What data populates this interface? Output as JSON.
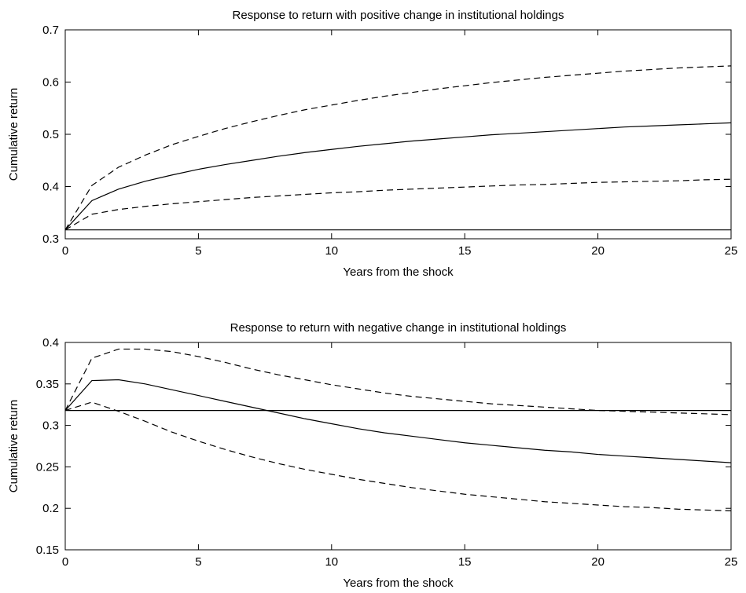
{
  "chart_data": [
    {
      "type": "line",
      "title": "Response to return with positive change in institutional holdings",
      "xlabel": "Years from the shock",
      "ylabel": "Cumulative return",
      "xlim": [
        0,
        25
      ],
      "ylim": [
        0.3,
        0.7
      ],
      "xticks": [
        0,
        5,
        10,
        15,
        20,
        25
      ],
      "xtick_labels": [
        "0",
        "5",
        "10",
        "15",
        "20",
        "25"
      ],
      "yticks": [
        0.3,
        0.4,
        0.5,
        0.6,
        0.7
      ],
      "ytick_labels": [
        "0.3",
        "0.4",
        "0.5",
        "0.6",
        "0.7"
      ],
      "grid": false,
      "x": [
        0,
        1,
        2,
        3,
        4,
        5,
        6,
        7,
        8,
        9,
        10,
        11,
        12,
        13,
        14,
        15,
        16,
        17,
        18,
        19,
        20,
        21,
        22,
        23,
        24,
        25
      ],
      "reference_y": 0.317,
      "series": [
        {
          "style": "solid",
          "values": [
            0.317,
            0.373,
            0.395,
            0.41,
            0.422,
            0.433,
            0.442,
            0.45,
            0.458,
            0.465,
            0.471,
            0.477,
            0.482,
            0.487,
            0.491,
            0.495,
            0.499,
            0.502,
            0.505,
            0.508,
            0.511,
            0.514,
            0.516,
            0.518,
            0.52,
            0.522
          ]
        },
        {
          "style": "dashed",
          "values": [
            0.317,
            0.402,
            0.437,
            0.46,
            0.48,
            0.496,
            0.511,
            0.524,
            0.536,
            0.547,
            0.556,
            0.565,
            0.573,
            0.58,
            0.587,
            0.593,
            0.599,
            0.604,
            0.609,
            0.613,
            0.617,
            0.621,
            0.624,
            0.627,
            0.629,
            0.631
          ]
        },
        {
          "style": "dashed",
          "values": [
            0.317,
            0.347,
            0.356,
            0.362,
            0.367,
            0.371,
            0.375,
            0.379,
            0.382,
            0.385,
            0.388,
            0.39,
            0.393,
            0.395,
            0.397,
            0.399,
            0.401,
            0.403,
            0.404,
            0.406,
            0.408,
            0.409,
            0.41,
            0.411,
            0.413,
            0.414
          ]
        }
      ]
    },
    {
      "type": "line",
      "title": "Response to return with negative change in institutional holdings",
      "xlabel": "Years from the shock",
      "ylabel": "Cumulative return",
      "xlim": [
        0,
        25
      ],
      "ylim": [
        0.15,
        0.4
      ],
      "xticks": [
        0,
        5,
        10,
        15,
        20,
        25
      ],
      "xtick_labels": [
        "0",
        "5",
        "10",
        "15",
        "20",
        "25"
      ],
      "yticks": [
        0.15,
        0.2,
        0.25,
        0.3,
        0.35,
        0.4
      ],
      "ytick_labels": [
        "0.15",
        "0.2",
        "0.25",
        "0.3",
        "0.35",
        "0.4"
      ],
      "grid": false,
      "x": [
        0,
        1,
        2,
        3,
        4,
        5,
        6,
        7,
        8,
        9,
        10,
        11,
        12,
        13,
        14,
        15,
        16,
        17,
        18,
        19,
        20,
        21,
        22,
        23,
        24,
        25
      ],
      "reference_y": 0.318,
      "series": [
        {
          "style": "solid",
          "values": [
            0.318,
            0.354,
            0.355,
            0.35,
            0.343,
            0.336,
            0.329,
            0.322,
            0.315,
            0.308,
            0.302,
            0.296,
            0.291,
            0.287,
            0.283,
            0.279,
            0.276,
            0.273,
            0.27,
            0.268,
            0.265,
            0.263,
            0.261,
            0.259,
            0.257,
            0.255
          ]
        },
        {
          "style": "dashed",
          "values": [
            0.318,
            0.381,
            0.392,
            0.392,
            0.389,
            0.383,
            0.376,
            0.368,
            0.361,
            0.355,
            0.349,
            0.344,
            0.339,
            0.335,
            0.332,
            0.329,
            0.326,
            0.324,
            0.322,
            0.32,
            0.318,
            0.317,
            0.316,
            0.315,
            0.314,
            0.313
          ]
        },
        {
          "style": "dashed",
          "values": [
            0.318,
            0.328,
            0.317,
            0.305,
            0.292,
            0.281,
            0.271,
            0.262,
            0.254,
            0.247,
            0.241,
            0.235,
            0.23,
            0.225,
            0.221,
            0.217,
            0.214,
            0.211,
            0.208,
            0.206,
            0.204,
            0.202,
            0.201,
            0.199,
            0.198,
            0.197
          ]
        }
      ]
    }
  ]
}
